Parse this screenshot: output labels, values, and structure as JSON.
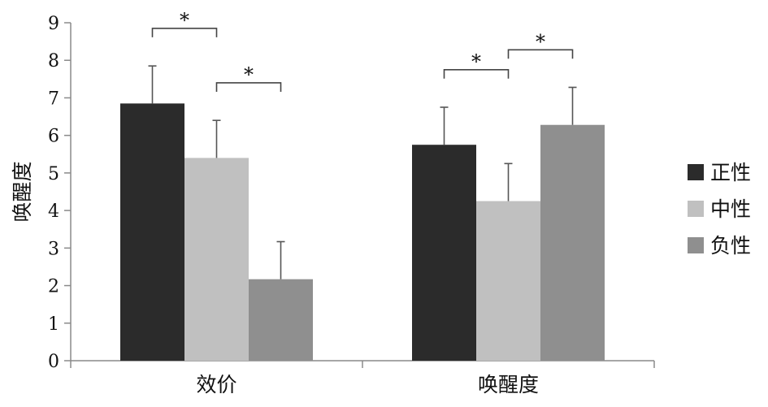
{
  "chart_data": {
    "type": "bar",
    "title": "",
    "xlabel": "",
    "ylabel": "唤醒度",
    "ylim": [
      0,
      9
    ],
    "yticks": [
      0,
      1,
      2,
      3,
      4,
      5,
      6,
      7,
      8,
      9
    ],
    "categories": [
      "效价",
      "唤醒度"
    ],
    "series": [
      {
        "name": "正性",
        "color": "#2b2b2b",
        "values": [
          6.85,
          5.75
        ],
        "errors": [
          1.0,
          1.0
        ]
      },
      {
        "name": "中性",
        "color": "#c0c0c0",
        "values": [
          5.4,
          4.25
        ],
        "errors": [
          1.0,
          1.0
        ]
      },
      {
        "name": "负性",
        "color": "#8f8f8f",
        "values": [
          2.17,
          6.28
        ],
        "errors": [
          1.0,
          1.0
        ]
      }
    ],
    "legend": {
      "position": "right"
    },
    "grid": false,
    "significance": [
      {
        "category": 0,
        "from_series": 0,
        "to_series": 1,
        "label": "*"
      },
      {
        "category": 0,
        "from_series": 1,
        "to_series": 2,
        "label": "*"
      },
      {
        "category": 1,
        "from_series": 0,
        "to_series": 1,
        "label": "*"
      },
      {
        "category": 1,
        "from_series": 1,
        "to_series": 2,
        "label": "*"
      }
    ]
  }
}
